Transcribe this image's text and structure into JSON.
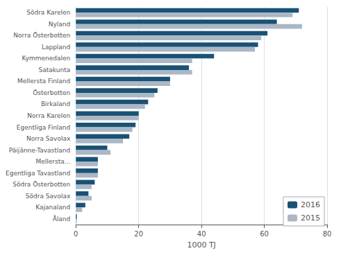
{
  "chart_data": {
    "type": "bar",
    "orientation": "horizontal",
    "categories": [
      "Södra Karelen",
      "Nyland",
      "Norra Österbotten",
      "Lappland",
      "Kymmenedalen",
      "Satakunta",
      "Mellersta Finland",
      "Österbotten",
      "Birkaland",
      "Norra Karelen",
      "Egentliga Finland",
      "Norra Savolax",
      "Päijänne-Tavastland",
      "Mellersta...",
      "Egentliga Tavastland",
      "Södra Österbotten",
      "Södra Savolax",
      "Kajanaland",
      "Åland"
    ],
    "series": [
      {
        "name": "2016",
        "color": "#1a5276",
        "values": [
          71,
          64,
          61,
          58,
          44,
          36,
          30,
          26,
          23,
          20,
          19,
          17,
          10,
          7,
          7,
          6,
          4,
          3,
          0.3
        ]
      },
      {
        "name": "2015",
        "color": "#aab7c4",
        "values": [
          69,
          72,
          59,
          57,
          37,
          37,
          30,
          25,
          22,
          20,
          18,
          15,
          11,
          7,
          7,
          5,
          5,
          2,
          0.3
        ]
      }
    ],
    "xlabel": "1000 TJ",
    "xlim": [
      0,
      80
    ],
    "xticks": [
      0,
      20,
      40,
      60,
      80
    ],
    "grid": true,
    "legend": "lower right"
  }
}
